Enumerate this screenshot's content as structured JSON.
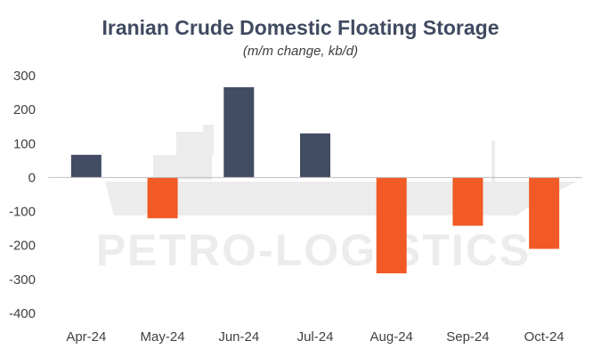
{
  "chart_data": {
    "type": "bar",
    "title": "Iranian Crude Domestic Floating Storage",
    "subtitle": "(m/m change, kb/d)",
    "categories": [
      "Apr-24",
      "May-24",
      "Jun-24",
      "Jul-24",
      "Aug-24",
      "Sep-24",
      "Oct-24"
    ],
    "values": [
      67,
      -120,
      266,
      130,
      -282,
      -142,
      -210
    ],
    "ylim": [
      -400,
      300
    ],
    "yticks": [
      "300",
      "200",
      "100",
      "0",
      "-100",
      "-200",
      "-300",
      "-400"
    ],
    "xlabel": "",
    "ylabel": "",
    "grid": false,
    "positive_color": "#424d64",
    "negative_color": "#f15a24",
    "watermark": "PETRO-LOGISTICS"
  }
}
